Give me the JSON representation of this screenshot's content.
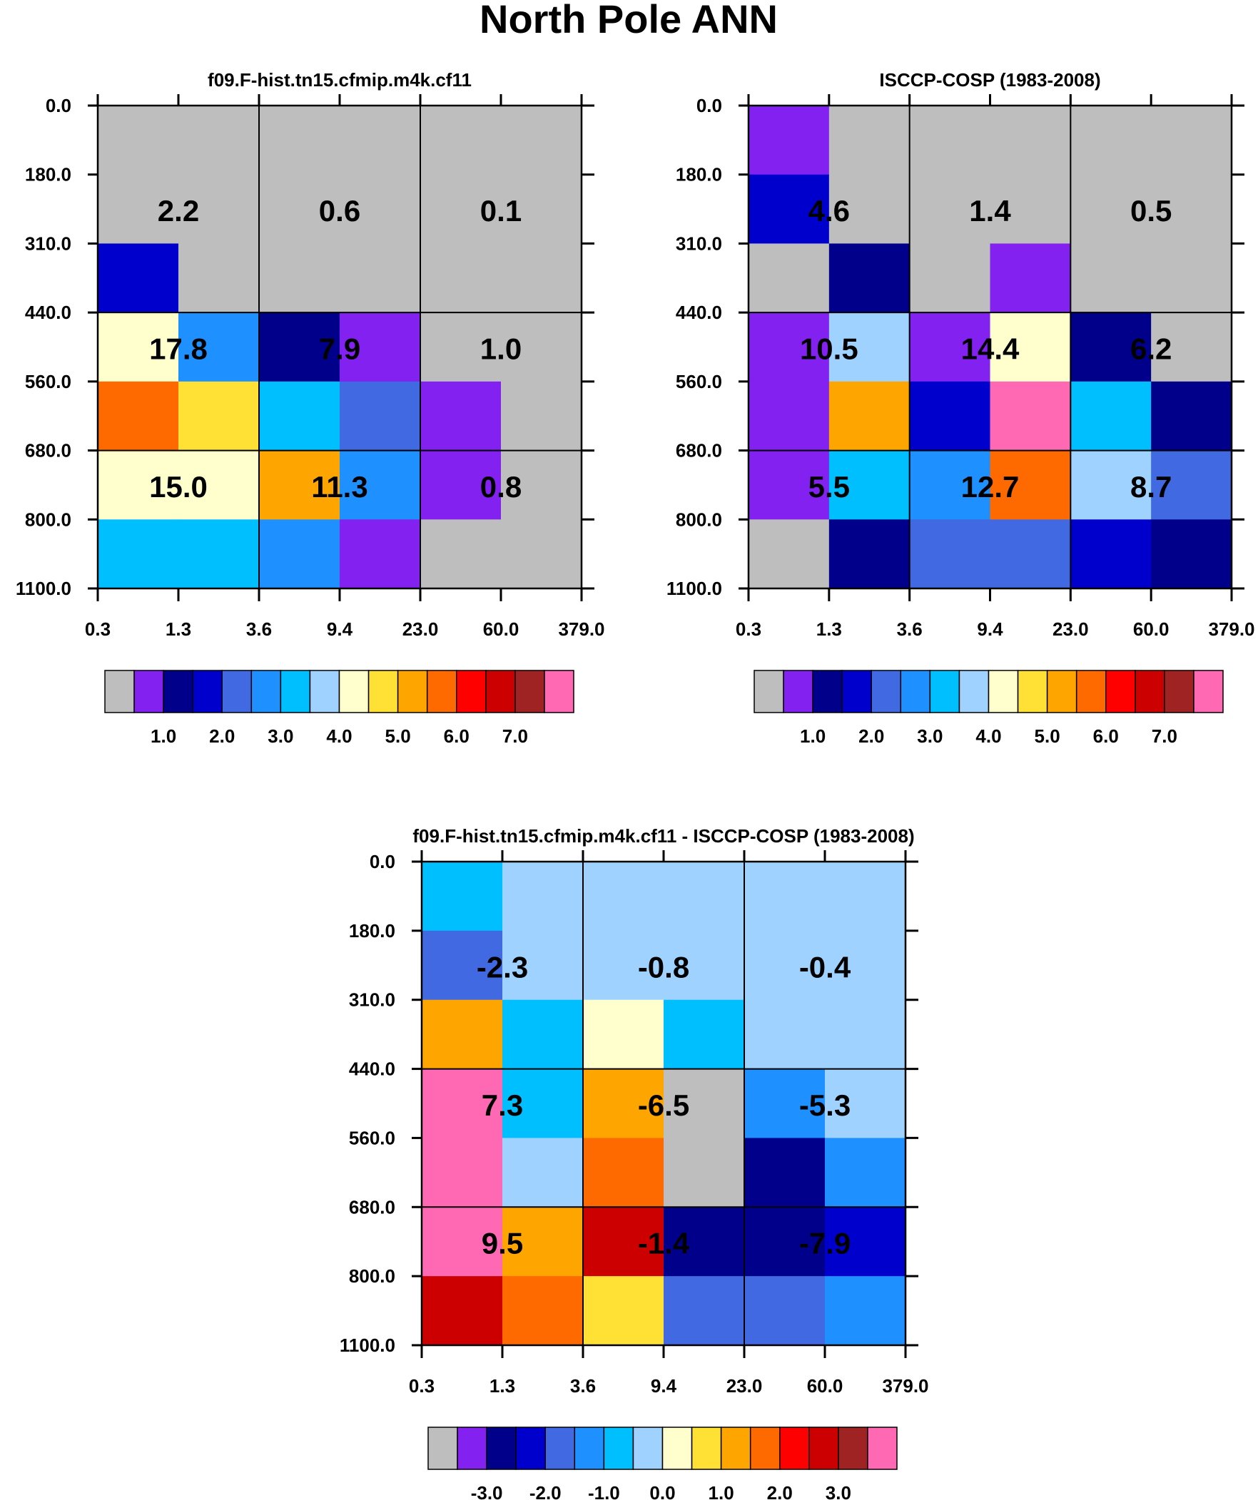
{
  "title": "North Pole ANN",
  "palette": [
    "#bebebe",
    "#8221f0",
    "#00008b",
    "#0000cd",
    "#4169e1",
    "#1e90ff",
    "#00bfff",
    "#a0d2ff",
    "#ffffcd",
    "#ffe135",
    "#ffa500",
    "#ff6a00",
    "#ff0000",
    "#cd0000",
    "#a02323",
    "#ff69b4"
  ],
  "chart_data": [
    {
      "type": "heatmap",
      "title": "f09.F-hist.tn15.cfmip.m4k.cf11",
      "x_ticks": [
        "0.3",
        "1.3",
        "3.6",
        "9.4",
        "23.0",
        "60.0",
        "379.0"
      ],
      "y_ticks": [
        "0.0",
        "180.0",
        "310.0",
        "440.0",
        "560.0",
        "680.0",
        "800.0",
        "1100.0"
      ],
      "cells": [
        [
          0,
          0,
          0,
          0,
          0,
          0
        ],
        [
          0,
          0,
          0,
          0,
          0,
          0
        ],
        [
          3,
          0,
          0,
          0,
          0,
          0
        ],
        [
          8,
          5,
          2,
          1,
          0,
          0
        ],
        [
          11,
          9,
          6,
          4,
          1,
          0
        ],
        [
          8,
          8,
          10,
          5,
          1,
          0
        ],
        [
          6,
          6,
          5,
          1,
          0,
          0
        ]
      ],
      "box_values": [
        [
          "2.2",
          "0.6",
          "0.1"
        ],
        [
          "17.8",
          "7.9",
          "1.0"
        ],
        [
          "15.0",
          "11.3",
          "0.8"
        ]
      ],
      "legend_labels": [
        "1.0",
        "2.0",
        "3.0",
        "4.0",
        "5.0",
        "6.0",
        "7.0"
      ]
    },
    {
      "type": "heatmap",
      "title": "ISCCP-COSP (1983-2008)",
      "x_ticks": [
        "0.3",
        "1.3",
        "3.6",
        "9.4",
        "23.0",
        "60.0",
        "379.0"
      ],
      "y_ticks": [
        "0.0",
        "180.0",
        "310.0",
        "440.0",
        "560.0",
        "680.0",
        "800.0",
        "1100.0"
      ],
      "cells": [
        [
          1,
          0,
          0,
          0,
          0,
          0
        ],
        [
          3,
          0,
          0,
          0,
          0,
          0
        ],
        [
          0,
          2,
          0,
          1,
          0,
          0
        ],
        [
          1,
          7,
          1,
          8,
          2,
          0
        ],
        [
          1,
          10,
          3,
          15,
          6,
          2
        ],
        [
          1,
          6,
          5,
          11,
          7,
          4
        ],
        [
          0,
          2,
          4,
          4,
          3,
          2
        ]
      ],
      "box_values": [
        [
          "4.6",
          "1.4",
          "0.5"
        ],
        [
          "10.5",
          "14.4",
          "6.2"
        ],
        [
          "5.5",
          "12.7",
          "8.7"
        ]
      ],
      "legend_labels": [
        "1.0",
        "2.0",
        "3.0",
        "4.0",
        "5.0",
        "6.0",
        "7.0"
      ]
    },
    {
      "type": "heatmap",
      "title": "f09.F-hist.tn15.cfmip.m4k.cf11 - ISCCP-COSP (1983-2008)",
      "x_ticks": [
        "0.3",
        "1.3",
        "3.6",
        "9.4",
        "23.0",
        "60.0",
        "379.0"
      ],
      "y_ticks": [
        "0.0",
        "180.0",
        "310.0",
        "440.0",
        "560.0",
        "680.0",
        "800.0",
        "1100.0"
      ],
      "cells": [
        [
          6,
          7,
          7,
          7,
          7,
          7
        ],
        [
          4,
          7,
          7,
          7,
          7,
          7
        ],
        [
          10,
          6,
          8,
          6,
          7,
          7
        ],
        [
          15,
          6,
          10,
          0,
          5,
          7
        ],
        [
          15,
          7,
          11,
          0,
          2,
          5
        ],
        [
          15,
          10,
          13,
          2,
          2,
          3
        ],
        [
          13,
          11,
          9,
          4,
          4,
          5
        ]
      ],
      "box_values": [
        [
          "-2.3",
          "-0.8",
          "-0.4"
        ],
        [
          "7.3",
          "-6.5",
          "-5.3"
        ],
        [
          "9.5",
          "-1.4",
          "-7.9"
        ]
      ],
      "legend_labels": [
        "-3.0",
        "-2.0",
        "-1.0",
        "0.0",
        "1.0",
        "2.0",
        "3.0"
      ]
    }
  ]
}
